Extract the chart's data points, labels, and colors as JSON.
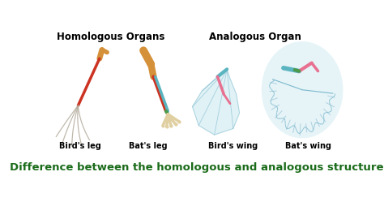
{
  "title": "Difference between the homologous and analogous structure",
  "title_color": "#1a6b1a",
  "title_fontsize": 9.5,
  "header_homologous": "Homologous Organs",
  "header_analogous": "Analogous Organ",
  "label_bird_leg": "Bird's leg",
  "label_bat_leg": "Bat's leg",
  "label_bird_wing": "Bird's wing",
  "label_bat_wing": "Bat's wing",
  "bg_color": "#ffffff",
  "orange_bone": "#d4913a",
  "red_bone": "#cc3322",
  "teal_bone": "#5ab5c0",
  "green_bone": "#4a9a4a",
  "cream_bone": "#e0cfa0",
  "gray_toe": "#b0a898",
  "wing_fill": "#c8e8f0",
  "wing_line": "#7ab8cc"
}
